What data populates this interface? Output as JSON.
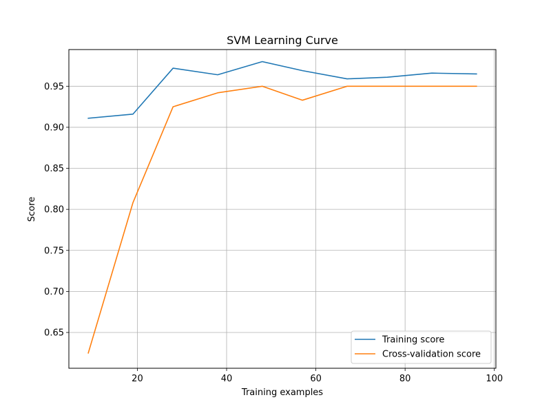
{
  "chart_data": {
    "type": "line",
    "title": "SVM Learning Curve",
    "xlabel": "Training examples",
    "ylabel": "Score",
    "xlim": [
      4.65,
      100.35
    ],
    "ylim": [
      0.6064,
      0.9947
    ],
    "xticks": [
      20,
      40,
      60,
      80,
      100
    ],
    "yticks": [
      0.65,
      0.7,
      0.75,
      0.8,
      0.85,
      0.9,
      0.95
    ],
    "grid": true,
    "legend_position": "lower-right",
    "x": [
      9,
      19,
      28,
      38,
      48,
      57,
      67,
      76,
      86,
      96
    ],
    "series": [
      {
        "name": "Training score",
        "color": "#1f77b4",
        "values": [
          0.911,
          0.916,
          0.972,
          0.964,
          0.98,
          0.969,
          0.959,
          0.961,
          0.966,
          0.965
        ]
      },
      {
        "name": "Cross-validation score",
        "color": "#ff7f0e",
        "values": [
          0.625,
          0.808,
          0.925,
          0.942,
          0.95,
          0.933,
          0.95,
          0.95,
          0.95,
          0.95
        ]
      }
    ]
  }
}
